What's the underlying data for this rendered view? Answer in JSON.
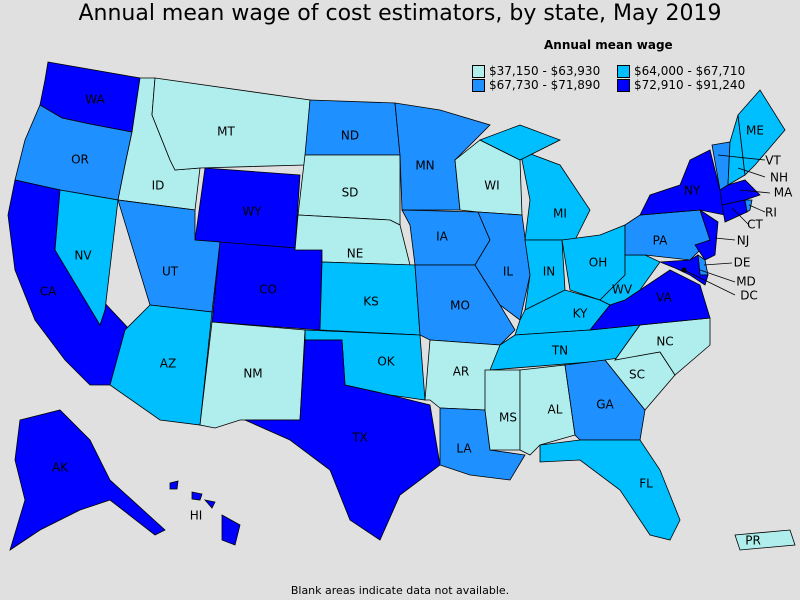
{
  "title": "Annual mean wage of cost estimators, by state, May 2019",
  "legend": {
    "title": "Annual mean wage",
    "bins": [
      {
        "label": "$37,150 - $63,930",
        "color": "#B0EEEE"
      },
      {
        "label": "$64,000 - $67,710",
        "color": "#00BFFF"
      },
      {
        "label": "$67,730 - $71,890",
        "color": "#1E90FF"
      },
      {
        "label": "$72,910 - $91,240",
        "color": "#0000FF"
      }
    ]
  },
  "footnote": "Blank areas indicate data not available.",
  "states": {
    "WA": {
      "label": "WA",
      "bin": 3
    },
    "OR": {
      "label": "OR",
      "bin": 2
    },
    "CA": {
      "label": "CA",
      "bin": 3
    },
    "NV": {
      "label": "NV",
      "bin": 1
    },
    "ID": {
      "label": "ID",
      "bin": 0
    },
    "MT": {
      "label": "MT",
      "bin": 0
    },
    "WY": {
      "label": "WY",
      "bin": 3
    },
    "UT": {
      "label": "UT",
      "bin": 2
    },
    "CO": {
      "label": "CO",
      "bin": 3
    },
    "AZ": {
      "label": "AZ",
      "bin": 1
    },
    "NM": {
      "label": "NM",
      "bin": 0
    },
    "ND": {
      "label": "ND",
      "bin": 2
    },
    "SD": {
      "label": "SD",
      "bin": 0
    },
    "NE": {
      "label": "NE",
      "bin": 0
    },
    "KS": {
      "label": "KS",
      "bin": 1
    },
    "OK": {
      "label": "OK",
      "bin": 1
    },
    "TX": {
      "label": "TX",
      "bin": 3
    },
    "MN": {
      "label": "MN",
      "bin": 2
    },
    "IA": {
      "label": "IA",
      "bin": 2
    },
    "MO": {
      "label": "MO",
      "bin": 2
    },
    "AR": {
      "label": "AR",
      "bin": 0
    },
    "LA": {
      "label": "LA",
      "bin": 2
    },
    "WI": {
      "label": "WI",
      "bin": 0
    },
    "IL": {
      "label": "IL",
      "bin": 2
    },
    "MI": {
      "label": "MI",
      "bin": 1
    },
    "IN": {
      "label": "IN",
      "bin": 1
    },
    "OH": {
      "label": "OH",
      "bin": 1
    },
    "KY": {
      "label": "KY",
      "bin": 1
    },
    "TN": {
      "label": "TN",
      "bin": 1
    },
    "MS": {
      "label": "MS",
      "bin": 0
    },
    "AL": {
      "label": "AL",
      "bin": 0
    },
    "GA": {
      "label": "GA",
      "bin": 2
    },
    "FL": {
      "label": "FL",
      "bin": 1
    },
    "SC": {
      "label": "SC",
      "bin": 0
    },
    "NC": {
      "label": "NC",
      "bin": 0
    },
    "VA": {
      "label": "VA",
      "bin": 3
    },
    "WV": {
      "label": "WV",
      "bin": 1
    },
    "PA": {
      "label": "PA",
      "bin": 2
    },
    "NY": {
      "label": "NY",
      "bin": 3
    },
    "VT": {
      "label": "VT",
      "bin": 2
    },
    "NH": {
      "label": "NH",
      "bin": 1
    },
    "ME": {
      "label": "ME",
      "bin": 1
    },
    "MA": {
      "label": "MA",
      "bin": 3
    },
    "CT": {
      "label": "CT",
      "bin": 3
    },
    "RI": {
      "label": "RI",
      "bin": 2
    },
    "NJ": {
      "label": "NJ",
      "bin": 3
    },
    "DE": {
      "label": "DE",
      "bin": 2
    },
    "MD": {
      "label": "MD",
      "bin": 3
    },
    "DC": {
      "label": "DC",
      "bin": 3
    },
    "AK": {
      "label": "AK",
      "bin": 3
    },
    "HI": {
      "label": "HI",
      "bin": 3
    },
    "PR": {
      "label": "PR",
      "bin": 0
    }
  }
}
